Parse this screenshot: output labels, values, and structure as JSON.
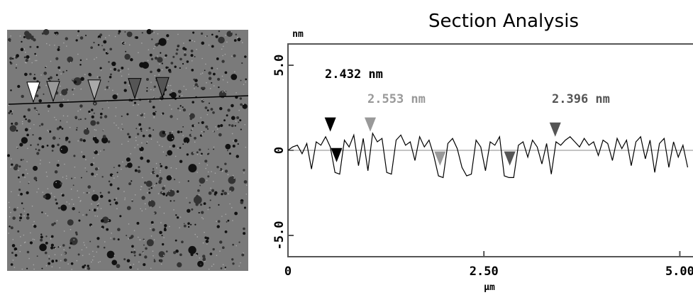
{
  "chart_data": {
    "type": "line",
    "title": "Section Analysis",
    "y_unit": "nm",
    "x_label": "µm",
    "x": [
      0.0,
      0.06,
      0.12,
      0.18,
      0.24,
      0.3,
      0.36,
      0.42,
      0.48,
      0.54,
      0.6,
      0.66,
      0.72,
      0.78,
      0.84,
      0.9,
      0.96,
      1.02,
      1.08,
      1.14,
      1.2,
      1.26,
      1.32,
      1.38,
      1.44,
      1.5,
      1.56,
      1.62,
      1.68,
      1.74,
      1.8,
      1.86,
      1.92,
      1.98,
      2.04,
      2.1,
      2.16,
      2.22,
      2.28,
      2.34,
      2.4,
      2.46,
      2.52,
      2.58,
      2.64,
      2.7,
      2.76,
      2.82,
      2.88,
      2.94,
      3.0,
      3.06,
      3.12,
      3.18,
      3.24,
      3.3,
      3.36,
      3.42,
      3.48,
      3.54,
      3.6,
      3.66,
      3.72,
      3.78,
      3.84,
      3.9,
      3.96,
      4.02,
      4.08,
      4.14,
      4.2,
      4.26,
      4.32,
      4.38,
      4.44,
      4.5,
      4.56,
      4.62,
      4.68,
      4.74,
      4.8,
      4.86,
      4.92,
      4.98,
      5.04,
      5.1
    ],
    "series": [
      {
        "color": "#000000",
        "values": [
          0.0,
          0.2,
          0.3,
          -0.2,
          0.4,
          -1.1,
          0.5,
          0.3,
          0.8,
          0.2,
          -1.3,
          -1.4,
          0.6,
          0.2,
          0.9,
          -0.9,
          0.7,
          -1.2,
          1.0,
          0.5,
          0.7,
          -1.3,
          -1.4,
          0.6,
          0.9,
          0.3,
          0.5,
          -0.6,
          0.8,
          0.2,
          0.6,
          -0.3,
          -1.5,
          -1.6,
          0.4,
          0.7,
          0.1,
          -1.0,
          -1.5,
          -1.4,
          0.6,
          0.2,
          -1.2,
          0.5,
          0.3,
          0.8,
          -1.5,
          -1.6,
          -1.6,
          0.3,
          0.5,
          -0.4,
          0.6,
          0.2,
          -0.8,
          0.4,
          -1.4,
          0.5,
          0.3,
          0.6,
          0.8,
          0.5,
          0.2,
          0.7,
          0.3,
          0.5,
          -0.3,
          0.6,
          0.4,
          -0.6,
          0.7,
          0.1,
          0.6,
          -0.9,
          0.5,
          0.8,
          -0.5,
          0.6,
          -1.3,
          0.4,
          0.7,
          -1.0,
          0.5,
          -0.4,
          0.3,
          -1.0
        ]
      }
    ],
    "cursors": [
      {
        "x": 0.54,
        "y": 1.1,
        "color": "#000000"
      },
      {
        "x": 0.62,
        "y": -0.7,
        "color": "#000000"
      },
      {
        "x": 1.05,
        "y": 1.1,
        "color": "#999999"
      },
      {
        "x": 1.94,
        "y": -0.9,
        "color": "#999999"
      },
      {
        "x": 2.83,
        "y": -0.9,
        "color": "#555555"
      },
      {
        "x": 3.41,
        "y": 0.8,
        "color": "#555555"
      }
    ],
    "annotations": [
      {
        "text": "2.432 nm",
        "color": "#000000"
      },
      {
        "text": "2.553 nm",
        "color": "#999999"
      },
      {
        "text": "2.396 nm",
        "color": "#555555"
      }
    ],
    "xlim": [
      0,
      5.15
    ],
    "ylim": [
      -6.25,
      6.25
    ],
    "xticks": [
      0,
      {
        "value": 2.5,
        "label": "2.50"
      },
      {
        "value": 5,
        "label": "5.00"
      }
    ],
    "yticks": [
      {
        "value": -5,
        "label": "-5.0"
      },
      0,
      {
        "value": 5,
        "label": "5.0"
      }
    ]
  }
}
